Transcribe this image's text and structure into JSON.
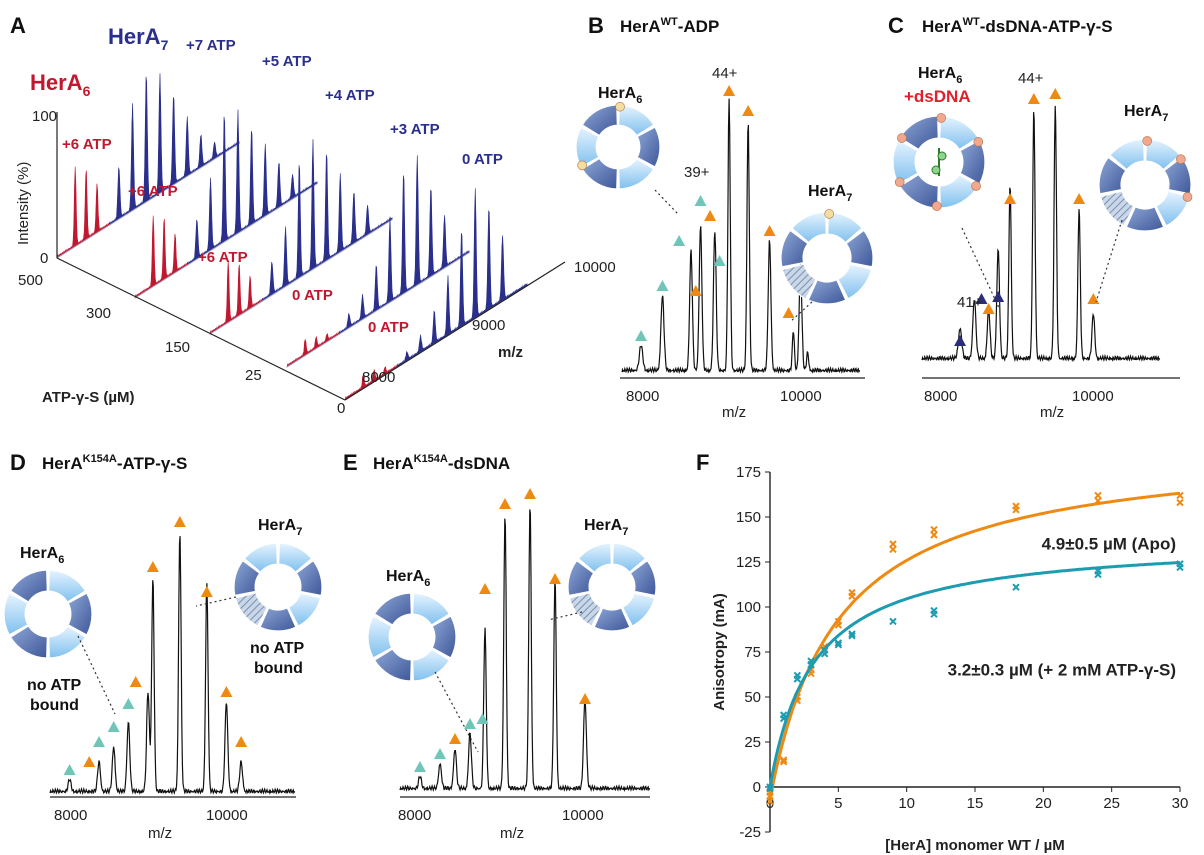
{
  "panels": {
    "A": {
      "label": "A"
    },
    "B": {
      "label": "B",
      "title": "HerA",
      "title_sup": "WT",
      "title_rest": "-ADP"
    },
    "C": {
      "label": "C",
      "title": "HerA",
      "title_sup": "WT",
      "title_rest": "-dsDNA-ATP-γ-S"
    },
    "D": {
      "label": "D",
      "title": "HerA",
      "title_sup": "K154A",
      "title_rest": "-ATP-γ-S"
    },
    "E": {
      "label": "E",
      "title": "HerA",
      "title_sup": "K154A",
      "title_rest": "-dsDNA"
    },
    "F": {
      "label": "F"
    }
  },
  "complex": {
    "hexamer": "HerA",
    "hexamer_sub": "6",
    "heptamer": "HerA",
    "heptamer_sub": "7",
    "dsdna": "+dsDNA"
  },
  "annotations": {
    "no_atp_1": "no ATP",
    "bound": "bound",
    "charge_44": "44+",
    "charge_39": "39+",
    "charge_41": "41+"
  },
  "panelA": {
    "intensity_label": "Intensity (%)",
    "int_ticks": [
      "100",
      "0"
    ],
    "conc_label": "ATP-γ-S (µM)",
    "conc_ticks": [
      "500",
      "300",
      "150",
      "25",
      "0"
    ],
    "mz_label": "m/z",
    "mz_ticks": [
      "10000",
      "9000",
      "8000"
    ],
    "traces": [
      {
        "conc": "500",
        "hexamer_label": "+6 ATP",
        "heptamer_label": "+7 ATP"
      },
      {
        "conc": "300",
        "hexamer_label": "+6 ATP",
        "heptamer_label": "+5 ATP"
      },
      {
        "conc": "150",
        "hexamer_label": "+6 ATP",
        "heptamer_label": "+4 ATP"
      },
      {
        "conc": "25",
        "hexamer_label": "0 ATP",
        "heptamer_label": "+3 ATP"
      },
      {
        "conc": "0",
        "hexamer_label": "0 ATP",
        "heptamer_label": "0 ATP"
      }
    ]
  },
  "spectra_axes": {
    "xlabel": "m/z",
    "ticks": [
      "8000",
      "10000"
    ]
  },
  "colors": {
    "hexamer": "#c0182f",
    "heptamer": "#2a2f8c",
    "orange": "#ee8a12",
    "teal": "#6fc6b8",
    "navy": "#2b2d7a",
    "fit_teal": "#1d9bb0"
  },
  "chart_data": {
    "type": "scatter",
    "title": "",
    "xlabel": "[HerA] monomer WT / µM",
    "ylabel": "Anisotropy (mA)",
    "xlim": [
      0,
      30
    ],
    "ylim": [
      -25,
      175
    ],
    "xticks": [
      0,
      5,
      10,
      15,
      20,
      25,
      30
    ],
    "yticks": [
      -25,
      0,
      25,
      50,
      75,
      100,
      125,
      150,
      175
    ],
    "series": [
      {
        "name": "4.9±0.5 µM (Apo)",
        "color": "#ee8a12",
        "x": [
          0,
          0,
          0,
          1,
          1,
          2,
          2,
          3,
          3,
          4,
          4,
          5,
          5,
          6,
          6,
          9,
          9,
          12,
          12,
          18,
          18,
          24,
          24,
          30,
          30
        ],
        "y": [
          -5,
          -8,
          -3,
          15,
          14,
          50,
          48,
          65,
          63,
          78,
          76,
          92,
          90,
          106,
          108,
          132,
          135,
          140,
          143,
          154,
          156,
          159,
          162,
          158,
          162
        ],
        "fit": {
          "Kd": 4.9,
          "Bmax": 198,
          "offset": -7
        }
      },
      {
        "name": "3.2±0.3 µM (+ 2 mM ATP-γ-S)",
        "color": "#1d9bb0",
        "x": [
          0,
          0,
          1,
          1,
          2,
          2,
          3,
          3,
          4,
          4,
          5,
          5,
          6,
          6,
          9,
          12,
          12,
          18,
          24,
          24,
          30,
          30
        ],
        "y": [
          -1,
          0,
          40,
          38,
          60,
          62,
          68,
          70,
          76,
          74,
          80,
          79,
          85,
          84,
          92,
          98,
          96,
          111,
          118,
          120,
          122,
          124
        ],
        "fit": {
          "Kd": 3.2,
          "Bmax": 138,
          "offset": 0
        }
      }
    ]
  }
}
